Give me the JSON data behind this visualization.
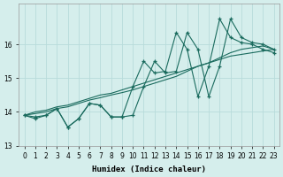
{
  "xlabel": "Humidex (Indice chaleur)",
  "background_color": "#d5eeec",
  "line_color": "#1a6b5e",
  "grid_color": "#b8dcdb",
  "x": [
    0,
    1,
    2,
    3,
    4,
    5,
    6,
    7,
    8,
    9,
    10,
    11,
    12,
    13,
    14,
    15,
    16,
    17,
    18,
    19,
    20,
    21,
    22,
    23
  ],
  "y_zigzag": [
    13.9,
    13.8,
    13.9,
    14.1,
    13.55,
    13.8,
    14.25,
    14.2,
    13.85,
    13.85,
    13.9,
    14.75,
    15.5,
    15.15,
    15.2,
    16.35,
    15.85,
    14.45,
    15.35,
    16.75,
    16.2,
    16.05,
    16.0,
    15.85
  ],
  "y_line1": [
    13.9,
    13.85,
    13.9,
    14.1,
    13.55,
    13.8,
    14.25,
    14.2,
    13.85,
    13.85,
    14.75,
    15.5,
    15.15,
    15.2,
    16.35,
    15.85,
    14.45,
    15.35,
    16.75,
    16.2,
    16.05,
    16.0,
    15.85,
    15.75
  ],
  "y_trend1": [
    13.9,
    14.0,
    14.05,
    14.15,
    14.2,
    14.3,
    14.4,
    14.5,
    14.55,
    14.65,
    14.75,
    14.85,
    14.95,
    15.05,
    15.15,
    15.25,
    15.35,
    15.45,
    15.55,
    15.65,
    15.7,
    15.75,
    15.8,
    15.85
  ],
  "y_trend2": [
    13.9,
    13.95,
    14.0,
    14.1,
    14.15,
    14.25,
    14.35,
    14.42,
    14.5,
    14.57,
    14.65,
    14.75,
    14.85,
    14.95,
    15.05,
    15.2,
    15.35,
    15.45,
    15.6,
    15.75,
    15.85,
    15.9,
    15.95,
    15.85
  ],
  "ylim": [
    13.0,
    17.2
  ],
  "yticks": [
    13,
    14,
    15,
    16
  ],
  "xticks": [
    0,
    1,
    2,
    3,
    4,
    5,
    6,
    7,
    8,
    9,
    10,
    11,
    12,
    13,
    14,
    15,
    16,
    17,
    18,
    19,
    20,
    21,
    22,
    23
  ],
  "tick_fontsize": 5.5,
  "label_fontsize": 6.5
}
